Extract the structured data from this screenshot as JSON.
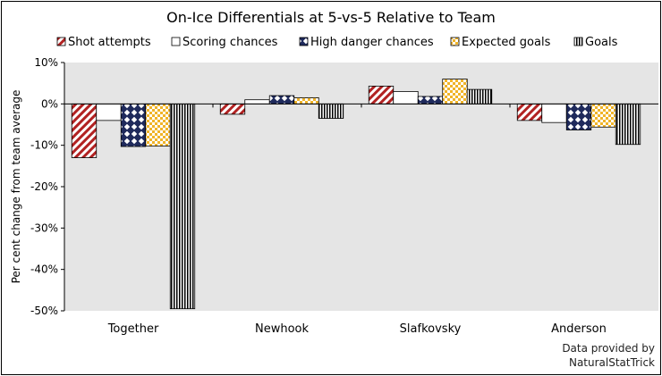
{
  "chart_data": {
    "type": "bar",
    "title": "On-Ice Differentials at 5-vs-5 Relative to Team",
    "ylabel": "Per cent change from team average",
    "xlabel": "",
    "ylim": [
      -50,
      10
    ],
    "yticks": [
      "10%",
      "0%",
      "-10%",
      "-20%",
      "-30%",
      "-40%",
      "-50%"
    ],
    "ytick_values": [
      10,
      0,
      -10,
      -20,
      -30,
      -40,
      -50
    ],
    "categories": [
      "Together",
      "Newhook",
      "Slafkovsky",
      "Anderson"
    ],
    "series": [
      {
        "name": "Shot attempts",
        "values": [
          -13,
          -2.5,
          4.3,
          -4
        ],
        "color": "#b22222",
        "pattern": "diagonal-hatch"
      },
      {
        "name": "Scoring chances",
        "values": [
          -4,
          1,
          3,
          -4.5
        ],
        "color": "#ffffff",
        "pattern": "solid-white"
      },
      {
        "name": "High danger chances",
        "values": [
          -10.3,
          2,
          1.8,
          -6.3
        ],
        "color": "#1f2a5c",
        "pattern": "diamond-check"
      },
      {
        "name": "Expected goals",
        "values": [
          -10.2,
          1.5,
          6,
          -5.6
        ],
        "color": "#f0b429",
        "pattern": "checker"
      },
      {
        "name": "Goals",
        "values": [
          -49.5,
          -3.5,
          3.5,
          -9.8
        ],
        "color": "#000000",
        "pattern": "vertical-stripes"
      }
    ],
    "grid": false,
    "legend_position": "top",
    "source": [
      "Data provided by",
      "NaturalStatTrick"
    ]
  }
}
